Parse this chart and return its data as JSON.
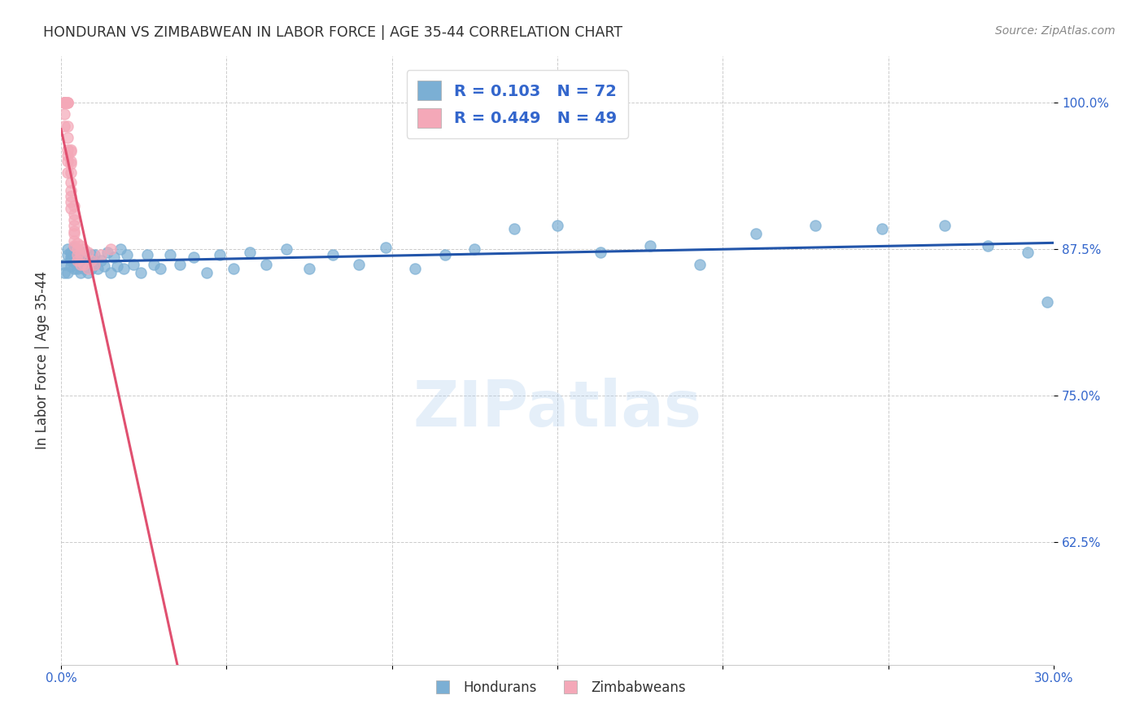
{
  "title": "HONDURAN VS ZIMBABWEAN IN LABOR FORCE | AGE 35-44 CORRELATION CHART",
  "source": "Source: ZipAtlas.com",
  "ylabel": "In Labor Force | Age 35-44",
  "xlim": [
    0.0,
    0.3
  ],
  "ylim": [
    0.52,
    1.04
  ],
  "yticks": [
    0.625,
    0.75,
    0.875,
    1.0
  ],
  "ytick_labels": [
    "62.5%",
    "75.0%",
    "87.5%",
    "100.0%"
  ],
  "xticks": [
    0.0,
    0.05,
    0.1,
    0.15,
    0.2,
    0.25,
    0.3
  ],
  "xtick_labels": [
    "0.0%",
    "",
    "",
    "",
    "",
    "",
    "30.0%"
  ],
  "hondurans_R": 0.103,
  "hondurans_N": 72,
  "zimbabweans_R": 0.449,
  "zimbabweans_N": 49,
  "blue_color": "#7BAFD4",
  "pink_color": "#F4A8B8",
  "blue_line_color": "#2255AA",
  "pink_line_color": "#E05070",
  "watermark": "ZIPatlas",
  "hondurans_x": [
    0.001,
    0.001,
    0.002,
    0.002,
    0.002,
    0.003,
    0.003,
    0.003,
    0.003,
    0.004,
    0.004,
    0.004,
    0.004,
    0.005,
    0.005,
    0.005,
    0.005,
    0.006,
    0.006,
    0.006,
    0.007,
    0.007,
    0.007,
    0.008,
    0.008,
    0.009,
    0.009,
    0.01,
    0.01,
    0.011,
    0.012,
    0.013,
    0.014,
    0.015,
    0.016,
    0.017,
    0.018,
    0.019,
    0.02,
    0.022,
    0.024,
    0.026,
    0.028,
    0.03,
    0.033,
    0.036,
    0.04,
    0.044,
    0.048,
    0.052,
    0.057,
    0.062,
    0.068,
    0.075,
    0.082,
    0.09,
    0.098,
    0.107,
    0.116,
    0.125,
    0.137,
    0.15,
    0.163,
    0.178,
    0.193,
    0.21,
    0.228,
    0.248,
    0.267,
    0.28,
    0.292,
    0.298
  ],
  "hondurans_y": [
    0.855,
    0.862,
    0.87,
    0.855,
    0.875,
    0.86,
    0.868,
    0.872,
    0.865,
    0.858,
    0.864,
    0.87,
    0.876,
    0.862,
    0.87,
    0.858,
    0.866,
    0.86,
    0.87,
    0.855,
    0.865,
    0.872,
    0.858,
    0.866,
    0.855,
    0.87,
    0.858,
    0.862,
    0.87,
    0.858,
    0.865,
    0.86,
    0.872,
    0.855,
    0.868,
    0.86,
    0.875,
    0.858,
    0.87,
    0.862,
    0.855,
    0.87,
    0.862,
    0.858,
    0.87,
    0.862,
    0.868,
    0.855,
    0.87,
    0.858,
    0.872,
    0.862,
    0.875,
    0.858,
    0.87,
    0.862,
    0.876,
    0.858,
    0.87,
    0.875,
    0.892,
    0.895,
    0.872,
    0.878,
    0.862,
    0.888,
    0.895,
    0.892,
    0.895,
    0.878,
    0.872,
    0.83
  ],
  "zimbabweans_x": [
    0.001,
    0.001,
    0.001,
    0.001,
    0.001,
    0.001,
    0.001,
    0.002,
    0.002,
    0.002,
    0.002,
    0.002,
    0.002,
    0.002,
    0.002,
    0.002,
    0.003,
    0.003,
    0.003,
    0.003,
    0.003,
    0.003,
    0.003,
    0.003,
    0.003,
    0.003,
    0.004,
    0.004,
    0.004,
    0.004,
    0.004,
    0.004,
    0.004,
    0.004,
    0.005,
    0.005,
    0.005,
    0.005,
    0.006,
    0.006,
    0.006,
    0.007,
    0.007,
    0.008,
    0.008,
    0.009,
    0.01,
    0.012,
    0.015
  ],
  "zimbabweans_y": [
    1.0,
    1.0,
    1.0,
    1.0,
    1.0,
    0.99,
    0.98,
    1.0,
    1.0,
    1.0,
    0.98,
    0.97,
    0.96,
    0.955,
    0.95,
    0.94,
    0.96,
    0.958,
    0.95,
    0.948,
    0.94,
    0.932,
    0.925,
    0.92,
    0.915,
    0.91,
    0.912,
    0.905,
    0.9,
    0.895,
    0.89,
    0.888,
    0.882,
    0.878,
    0.88,
    0.875,
    0.87,
    0.865,
    0.878,
    0.87,
    0.862,
    0.875,
    0.862,
    0.872,
    0.858,
    0.865,
    0.862,
    0.87,
    0.875
  ]
}
